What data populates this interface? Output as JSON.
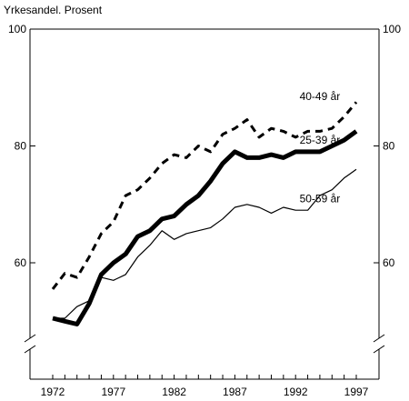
{
  "chart_data": {
    "type": "line",
    "ylabel": "Yrkesandel. Prosent",
    "xlabel": "",
    "xlim": [
      1971,
      1998
    ],
    "ylim": [
      45,
      100
    ],
    "y_axis_break": true,
    "grid": false,
    "x_ticks": [
      1972,
      1977,
      1982,
      1987,
      1992,
      1997
    ],
    "y_ticks": [
      60,
      80,
      100
    ],
    "x_tick_labels": [
      "1972",
      "1977",
      "1982",
      "1987",
      "1992",
      "1997"
    ],
    "y_tick_labels": [
      "60",
      "80",
      "100"
    ],
    "x": [
      1972,
      1973,
      1974,
      1975,
      1976,
      1977,
      1978,
      1979,
      1980,
      1981,
      1982,
      1983,
      1984,
      1985,
      1986,
      1987,
      1988,
      1989,
      1990,
      1991,
      1992,
      1993,
      1994,
      1995,
      1996,
      1997
    ],
    "series": [
      {
        "name": "40-49 år",
        "style": "dashed",
        "color": "#000000",
        "values": [
          55.5,
          58.2,
          57.5,
          61.0,
          65.0,
          67.0,
          71.5,
          72.5,
          74.5,
          77.0,
          78.5,
          78.0,
          80.0,
          79.0,
          82.0,
          83.0,
          84.5,
          81.5,
          83.0,
          82.5,
          81.5,
          82.5,
          82.5,
          83.0,
          85.0,
          87.5
        ]
      },
      {
        "name": "25-39 år",
        "style": "thick",
        "color": "#000000",
        "values": [
          50.5,
          50.0,
          49.5,
          53.0,
          58.0,
          60.0,
          61.5,
          64.5,
          65.5,
          67.5,
          68.0,
          70.0,
          71.5,
          74.0,
          77.0,
          79.0,
          78.0,
          78.0,
          78.5,
          78.0,
          79.0,
          79.0,
          79.0,
          80.0,
          81.0,
          82.5
        ]
      },
      {
        "name": "50-59 år",
        "style": "thin",
        "color": "#000000",
        "values": [
          50.5,
          50.5,
          52.5,
          53.5,
          57.5,
          57.0,
          58.0,
          61.0,
          63.0,
          65.5,
          64.0,
          65.0,
          65.5,
          66.0,
          67.5,
          69.5,
          70.0,
          69.5,
          68.5,
          69.5,
          69.0,
          69.0,
          71.5,
          72.5,
          74.5,
          76.0
        ]
      }
    ],
    "series_label_positions": {
      "40-49 år": [
        1994,
        88.5
      ],
      "25-39 år": [
        1994,
        81.0
      ],
      "50-59 år": [
        1994,
        71.0
      ]
    }
  }
}
